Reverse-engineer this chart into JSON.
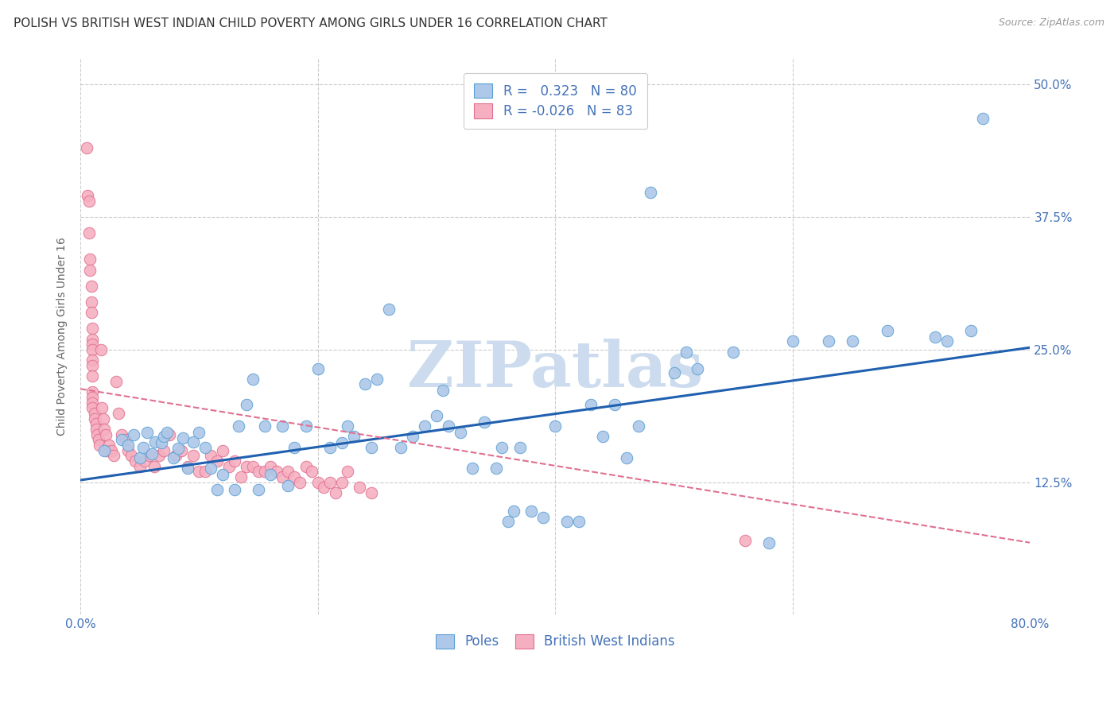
{
  "title": "POLISH VS BRITISH WEST INDIAN CHILD POVERTY AMONG GIRLS UNDER 16 CORRELATION CHART",
  "source": "Source: ZipAtlas.com",
  "ylabel": "Child Poverty Among Girls Under 16",
  "xlim": [
    0.0,
    0.8
  ],
  "ylim": [
    0.0,
    0.525
  ],
  "xticks": [
    0.0,
    0.2,
    0.4,
    0.6,
    0.8
  ],
  "xticklabels": [
    "0.0%",
    "",
    "",
    "",
    "80.0%"
  ],
  "yticks": [
    0.0,
    0.125,
    0.25,
    0.375,
    0.5
  ],
  "yticklabels_right": [
    "",
    "12.5%",
    "25.0%",
    "37.5%",
    "50.0%"
  ],
  "background_color": "#ffffff",
  "grid_color": "#cccccc",
  "poles_color": "#adc8e8",
  "bwi_color": "#f5afc0",
  "poles_edge_color": "#5a9fd4",
  "bwi_edge_color": "#e07090",
  "poles_line_color": "#2060b0",
  "bwi_line_color": "#e07090",
  "tick_color": "#4472b8",
  "poles_R": 0.323,
  "poles_N": 80,
  "bwi_R": -0.026,
  "bwi_N": 83,
  "title_fontsize": 11,
  "axis_label_fontsize": 10,
  "tick_fontsize": 11,
  "legend_fontsize": 12,
  "watermark_text": "ZIPatlas",
  "watermark_color": "#ccdcee",
  "poles_x": [
    0.02,
    0.035,
    0.04,
    0.045,
    0.05,
    0.053,
    0.056,
    0.06,
    0.063,
    0.068,
    0.07,
    0.073,
    0.078,
    0.082,
    0.086,
    0.09,
    0.095,
    0.1,
    0.105,
    0.11,
    0.115,
    0.12,
    0.13,
    0.133,
    0.14,
    0.145,
    0.15,
    0.155,
    0.16,
    0.17,
    0.175,
    0.18,
    0.19,
    0.2,
    0.21,
    0.22,
    0.225,
    0.23,
    0.24,
    0.245,
    0.25,
    0.26,
    0.27,
    0.28,
    0.29,
    0.3,
    0.305,
    0.31,
    0.32,
    0.33,
    0.34,
    0.35,
    0.355,
    0.36,
    0.365,
    0.37,
    0.38,
    0.39,
    0.4,
    0.41,
    0.42,
    0.43,
    0.44,
    0.45,
    0.46,
    0.47,
    0.48,
    0.5,
    0.51,
    0.52,
    0.55,
    0.58,
    0.6,
    0.63,
    0.65,
    0.68,
    0.72,
    0.73,
    0.75,
    0.76
  ],
  "poles_y": [
    0.155,
    0.165,
    0.16,
    0.17,
    0.148,
    0.158,
    0.172,
    0.152,
    0.163,
    0.162,
    0.168,
    0.172,
    0.148,
    0.157,
    0.167,
    0.138,
    0.163,
    0.172,
    0.158,
    0.138,
    0.118,
    0.132,
    0.118,
    0.178,
    0.198,
    0.222,
    0.118,
    0.178,
    0.132,
    0.178,
    0.122,
    0.158,
    0.178,
    0.232,
    0.158,
    0.162,
    0.178,
    0.168,
    0.218,
    0.158,
    0.222,
    0.288,
    0.158,
    0.168,
    0.178,
    0.188,
    0.212,
    0.178,
    0.172,
    0.138,
    0.182,
    0.138,
    0.158,
    0.088,
    0.098,
    0.158,
    0.098,
    0.092,
    0.178,
    0.088,
    0.088,
    0.198,
    0.168,
    0.198,
    0.148,
    0.178,
    0.398,
    0.228,
    0.248,
    0.232,
    0.248,
    0.068,
    0.258,
    0.258,
    0.258,
    0.268,
    0.262,
    0.258,
    0.268,
    0.468
  ],
  "bwi_x": [
    0.005,
    0.006,
    0.007,
    0.007,
    0.008,
    0.008,
    0.009,
    0.009,
    0.009,
    0.01,
    0.01,
    0.01,
    0.01,
    0.01,
    0.01,
    0.01,
    0.01,
    0.01,
    0.01,
    0.01,
    0.012,
    0.012,
    0.013,
    0.013,
    0.014,
    0.015,
    0.016,
    0.017,
    0.018,
    0.019,
    0.02,
    0.021,
    0.022,
    0.024,
    0.026,
    0.028,
    0.03,
    0.032,
    0.035,
    0.038,
    0.04,
    0.043,
    0.046,
    0.05,
    0.054,
    0.058,
    0.062,
    0.066,
    0.07,
    0.075,
    0.08,
    0.085,
    0.09,
    0.095,
    0.1,
    0.105,
    0.11,
    0.115,
    0.12,
    0.125,
    0.13,
    0.135,
    0.14,
    0.145,
    0.15,
    0.155,
    0.16,
    0.165,
    0.17,
    0.175,
    0.18,
    0.185,
    0.19,
    0.195,
    0.2,
    0.205,
    0.21,
    0.215,
    0.22,
    0.225,
    0.235,
    0.245,
    0.56
  ],
  "bwi_y": [
    0.44,
    0.395,
    0.39,
    0.36,
    0.335,
    0.325,
    0.31,
    0.295,
    0.285,
    0.27,
    0.26,
    0.255,
    0.25,
    0.24,
    0.235,
    0.225,
    0.21,
    0.205,
    0.2,
    0.195,
    0.19,
    0.185,
    0.18,
    0.175,
    0.17,
    0.165,
    0.16,
    0.25,
    0.195,
    0.185,
    0.175,
    0.17,
    0.155,
    0.16,
    0.155,
    0.15,
    0.22,
    0.19,
    0.17,
    0.165,
    0.155,
    0.15,
    0.145,
    0.14,
    0.145,
    0.15,
    0.14,
    0.15,
    0.155,
    0.17,
    0.15,
    0.155,
    0.14,
    0.15,
    0.135,
    0.135,
    0.15,
    0.145,
    0.155,
    0.14,
    0.145,
    0.13,
    0.14,
    0.14,
    0.135,
    0.135,
    0.14,
    0.135,
    0.13,
    0.135,
    0.13,
    0.125,
    0.14,
    0.135,
    0.125,
    0.12,
    0.125,
    0.115,
    0.125,
    0.135,
    0.12,
    0.115,
    0.07
  ]
}
